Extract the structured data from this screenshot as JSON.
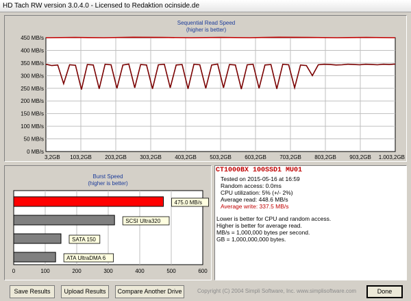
{
  "window": {
    "title": "HD Tach RW version 3.0.4.0 - Licensed to Redaktion ocinside.de"
  },
  "seq_chart": {
    "title": "Sequential Read Speed",
    "subtitle": "(higher is better)",
    "y_ticks": [
      "450 MB/s",
      "400 MB/s",
      "350 MB/s",
      "300 MB/s",
      "250 MB/s",
      "200 MB/s",
      "150 MB/s",
      "100 MB/s",
      "50 MB/s",
      "0 MB/s"
    ],
    "x_ticks": [
      "3,2GB",
      "103,2GB",
      "203,2GB",
      "303,2GB",
      "403,2GB",
      "503,2GB",
      "603,2GB",
      "703,2GB",
      "803,2GB",
      "903,2GB",
      "1.003,2GB"
    ]
  },
  "burst_chart": {
    "title": "Burst Speed",
    "subtitle": "(higher is better)",
    "x_ticks": [
      "0",
      "100",
      "200",
      "300",
      "400",
      "500",
      "600"
    ]
  },
  "chart_data": [
    {
      "type": "line",
      "title": "Sequential Read Speed",
      "subtitle": "(higher is better)",
      "xlabel": "",
      "ylabel": "",
      "x_unit": "GB",
      "y_unit": "MB/s",
      "xlim": [
        3.2,
        1003.2
      ],
      "ylim": [
        0,
        450
      ],
      "grid": true,
      "series": [
        {
          "color": "#c00000",
          "values": [
            450,
            451,
            450,
            452,
            451,
            450,
            451,
            450,
            452,
            451,
            450,
            451,
            450
          ]
        },
        {
          "color": "#7a0000",
          "values": [
            345,
            340,
            342,
            268,
            343,
            341,
            245,
            344,
            342,
            248,
            345,
            343,
            250,
            342,
            346,
            252,
            344,
            342,
            248,
            343,
            345,
            252,
            342,
            344,
            248,
            345,
            343,
            250,
            342,
            346,
            252,
            344,
            342,
            247,
            343,
            345,
            250,
            342,
            344,
            248,
            345,
            343,
            252,
            342,
            340,
            300,
            343,
            345,
            344,
            342,
            343,
            345,
            344,
            343,
            345,
            344,
            343,
            345,
            344,
            346
          ]
        }
      ]
    },
    {
      "type": "bar",
      "title": "Burst Speed",
      "subtitle": "(higher is better)",
      "orientation": "horizontal",
      "xlim": [
        0,
        600
      ],
      "categories": [
        "475.0 MB/s",
        "SCSI Ultra320",
        "SATA 150",
        "ATA UltraDMA 6"
      ],
      "values": [
        475,
        320,
        150,
        133
      ],
      "colors": [
        "#ff0000",
        "#808080",
        "#808080",
        "#808080"
      ]
    }
  ],
  "info": {
    "drive": "CT1000BX 100SSD1 MU01",
    "tested": "Tested on 2015-05-16 at 16:59",
    "random_access": "Random access: 0.0ms",
    "cpu": "CPU utilization: 5% (+/- 2%)",
    "avg_read": "Average read: 448.6 MB/s",
    "avg_write": "Average write: 337.5 MB/s",
    "note1": "Lower is better for CPU and random access.",
    "note2": "Higher is better for average read.",
    "note3": "MB/s = 1,000,000 bytes per second.",
    "note4": "GB = 1,000,000,000 bytes."
  },
  "buttons": {
    "save": "Save Results",
    "upload": "Upload Results",
    "compare": "Compare Another Drive",
    "done": "Done"
  },
  "footer": {
    "copyright": "Copyright (C) 2004 Simpli Software, Inc. www.simplisoftware.com"
  }
}
